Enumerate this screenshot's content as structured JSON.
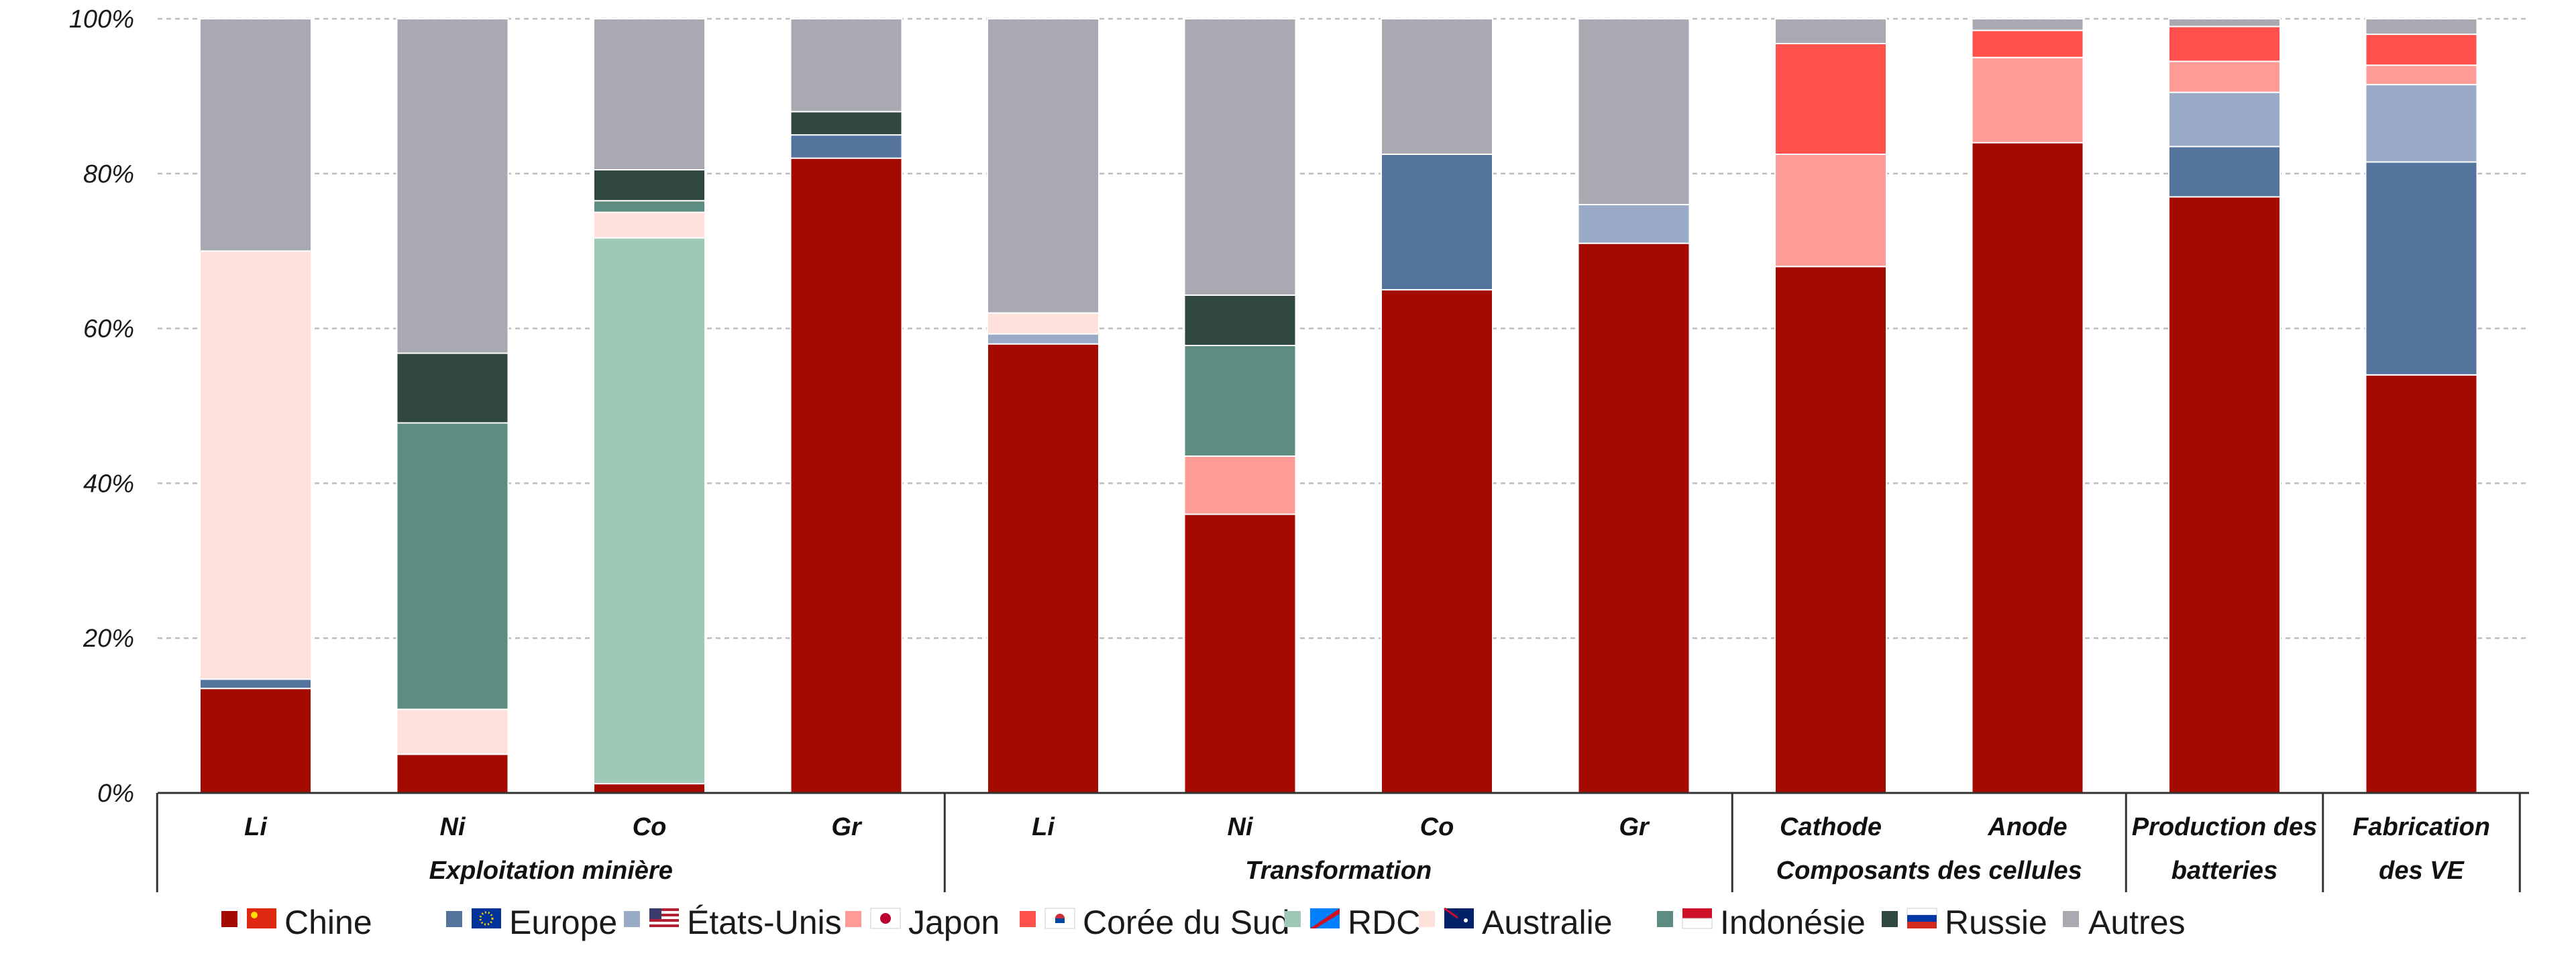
{
  "chart_data": {
    "type": "bar",
    "stacked": true,
    "ylim": [
      0,
      100
    ],
    "y_ticks": [
      "0%",
      "20%",
      "40%",
      "60%",
      "80%",
      "100%"
    ],
    "grid": "horizontal-dashed",
    "legend_position": "bottom",
    "categories": [
      "Li",
      "Ni",
      "Co",
      "Gr",
      "Li",
      "Ni",
      "Co",
      "Gr",
      "Cathode",
      "Anode",
      "",
      ""
    ],
    "groups": [
      {
        "label": "Exploitation minière",
        "lines": [
          "",
          "Exploitation minière"
        ],
        "span": [
          0,
          3
        ]
      },
      {
        "label": "Transformation",
        "lines": [
          "",
          "Transformation"
        ],
        "span": [
          4,
          7
        ]
      },
      {
        "label": "Composants des cellules",
        "lines": [
          "",
          "Composants des cellules"
        ],
        "span": [
          8,
          9
        ]
      },
      {
        "label": "Production des batteries",
        "lines": [
          "Production des",
          "batteries"
        ],
        "span": [
          10,
          10
        ]
      },
      {
        "label": "Fabrication des VE",
        "lines": [
          "Fabrication",
          "des VE"
        ],
        "span": [
          11,
          11
        ]
      }
    ],
    "series": [
      {
        "name": "Chine",
        "color": "#a50a00",
        "icon": "china-flag-icon",
        "values": [
          13.5,
          5,
          1.2,
          82,
          58,
          36,
          65,
          71,
          68,
          84,
          77,
          54
        ]
      },
      {
        "name": "Europe",
        "color": "#54749e",
        "icon": "eu-flag-icon",
        "values": [
          1.2,
          0,
          0,
          3,
          0,
          0,
          17.5,
          0,
          0,
          0,
          6.5,
          27.5
        ]
      },
      {
        "name": "États-Unis",
        "color": "#9aabc8",
        "icon": "usa-flag-icon",
        "values": [
          0,
          0,
          0,
          0,
          1.3,
          0,
          0,
          5,
          0,
          0,
          7,
          10
        ]
      },
      {
        "name": "Japon",
        "color": "#ff9b96",
        "icon": "japan-flag-icon",
        "values": [
          0,
          0,
          0,
          0,
          0,
          7.5,
          0,
          0,
          14.5,
          11,
          4,
          2.5
        ]
      },
      {
        "name": "Corée du Sud",
        "color": "#ff504b",
        "icon": "korea-flag-icon",
        "values": [
          0,
          0,
          0,
          0,
          0,
          0,
          0,
          0,
          14.3,
          3.5,
          4.5,
          4
        ]
      },
      {
        "name": "RDC",
        "color": "#9fc8b7",
        "icon": "drc-flag-icon",
        "values": [
          0,
          0,
          70.5,
          0,
          0,
          0,
          0,
          0,
          0,
          0,
          0,
          0
        ]
      },
      {
        "name": "Australie",
        "color": "#ffe1dc",
        "icon": "australia-flag-icon",
        "values": [
          55.3,
          5.8,
          3.3,
          0,
          2.7,
          0,
          0,
          0,
          0,
          0,
          0,
          0
        ]
      },
      {
        "name": "Indonésie",
        "color": "#5f8c80",
        "icon": "indonesia-flag-icon",
        "values": [
          0,
          37,
          1.5,
          0,
          0,
          14.3,
          0,
          0,
          0,
          0,
          0,
          0
        ]
      },
      {
        "name": "Russie",
        "color": "#304640",
        "icon": "russia-flag-icon",
        "values": [
          0,
          9,
          4,
          3,
          0,
          6.5,
          0,
          0,
          0,
          0,
          0,
          0
        ]
      },
      {
        "name": "Autres",
        "color": "#a9a9b1",
        "icon": "",
        "values": [
          30,
          43.2,
          19.5,
          12,
          38,
          35.7,
          17.5,
          24,
          3.2,
          1.5,
          1,
          2
        ]
      }
    ]
  }
}
